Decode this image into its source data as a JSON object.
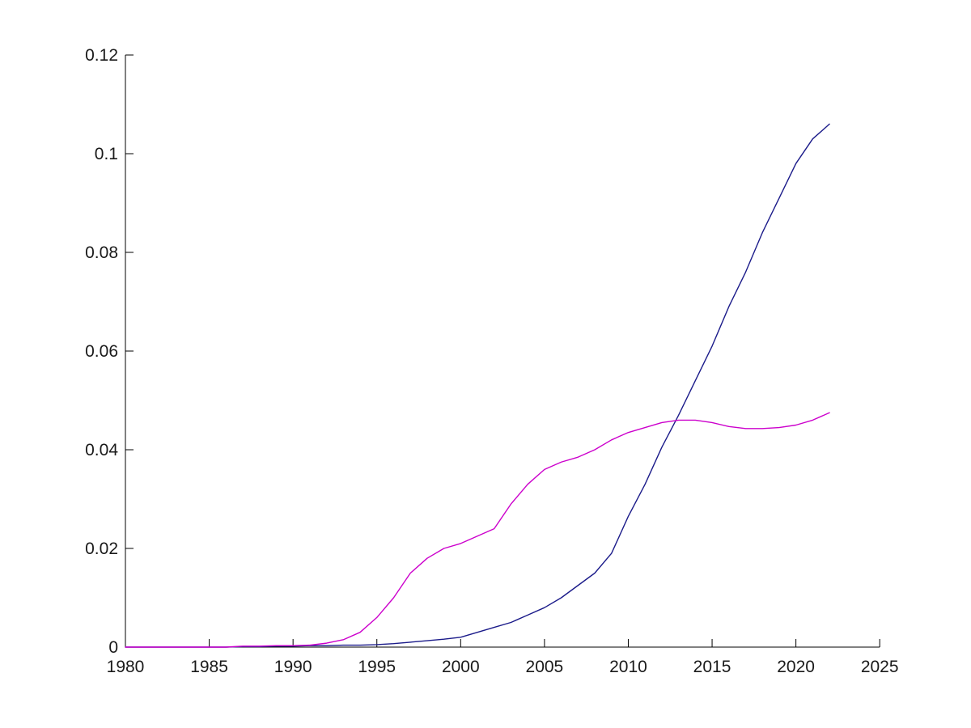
{
  "figure": {
    "background_color": "#ffffff",
    "axis_color": "#000000"
  },
  "chart_data": {
    "type": "line",
    "title": "",
    "xlabel": "",
    "ylabel": "",
    "grid": false,
    "legend": null,
    "xlim": [
      1980,
      2025
    ],
    "ylim": [
      0,
      0.12
    ],
    "xticks": [
      1980,
      1985,
      1990,
      1995,
      2000,
      2005,
      2010,
      2015,
      2020,
      2025
    ],
    "xtick_labels": [
      "1980",
      "1985",
      "1990",
      "1995",
      "2000",
      "2005",
      "2010",
      "2015",
      "2020",
      "2025"
    ],
    "yticks": [
      0,
      0.02,
      0.04,
      0.06,
      0.08,
      0.1,
      0.12
    ],
    "ytick_labels": [
      "0",
      "0.02",
      "0.04",
      "0.06",
      "0.08",
      "0.1",
      "0.12"
    ],
    "x": [
      1980,
      1981,
      1982,
      1983,
      1984,
      1985,
      1986,
      1987,
      1988,
      1989,
      1990,
      1991,
      1992,
      1993,
      1994,
      1995,
      1996,
      1997,
      1998,
      1999,
      2000,
      2001,
      2002,
      2003,
      2004,
      2005,
      2006,
      2007,
      2008,
      2009,
      2010,
      2011,
      2012,
      2013,
      2014,
      2015,
      2016,
      2017,
      2018,
      2019,
      2020,
      2021,
      2022
    ],
    "series": [
      {
        "name": "navy-line",
        "color": "#1b1b8a",
        "values": [
          0,
          0,
          0,
          0,
          0,
          0,
          0,
          0.0001,
          0.0001,
          0.0002,
          0.0002,
          0.0003,
          0.0003,
          0.0004,
          0.0004,
          0.0005,
          0.0007,
          0.001,
          0.0013,
          0.0016,
          0.002,
          0.003,
          0.004,
          0.005,
          0.0065,
          0.008,
          0.01,
          0.0125,
          0.015,
          0.019,
          0.0265,
          0.033,
          0.0405,
          0.047,
          0.054,
          0.061,
          0.069,
          0.076,
          0.084,
          0.091,
          0.098,
          0.103,
          0.106
        ]
      },
      {
        "name": "magenta-line",
        "color": "#cc00cc",
        "values": [
          0,
          0,
          0,
          0,
          0,
          0,
          0,
          0.0002,
          0.0002,
          0.0003,
          0.0003,
          0.0004,
          0.0008,
          0.0015,
          0.003,
          0.006,
          0.01,
          0.015,
          0.018,
          0.02,
          0.021,
          0.0225,
          0.024,
          0.029,
          0.033,
          0.036,
          0.0375,
          0.0385,
          0.04,
          0.042,
          0.0435,
          0.0445,
          0.0455,
          0.046,
          0.046,
          0.0455,
          0.0447,
          0.0443,
          0.0443,
          0.0445,
          0.045,
          0.046,
          0.0475
        ]
      }
    ]
  }
}
